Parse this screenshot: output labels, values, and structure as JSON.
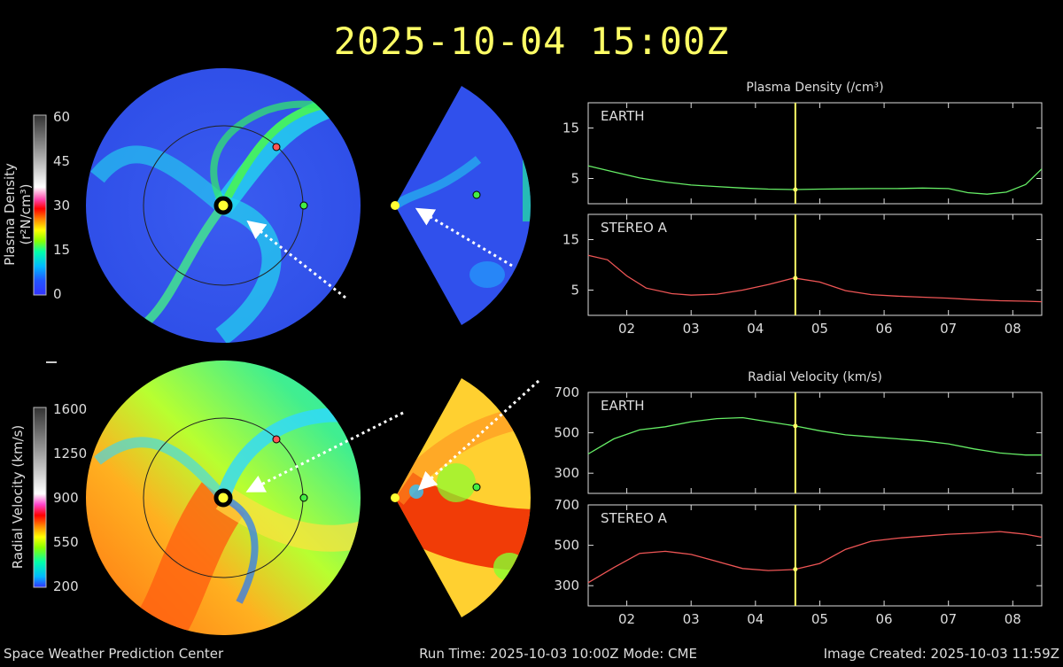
{
  "header": {
    "timestamp": "2025-10-04 15:00Z"
  },
  "footer": {
    "left": "Space Weather Prediction Center",
    "center": "Run Time: 2025-10-03 10:00Z  Mode: CME",
    "right": "Image Created: 2025-10-03 11:59Z"
  },
  "colorbars": {
    "density": {
      "label_html": "Plasma Density (r²N/cm³)",
      "ticks": [
        "60",
        "45",
        "30",
        "15",
        "0"
      ]
    },
    "velocity": {
      "label_html": "Radial Velocity (km/s)",
      "ticks": [
        "1600",
        "1250",
        "900",
        "550",
        "200"
      ]
    }
  },
  "colors": {
    "earth_line": "#66ee66",
    "stereo_line": "#ee5555",
    "time_marker": "#ffff66",
    "title": "#ffff66"
  },
  "chart_data": [
    {
      "type": "line",
      "panel": "Plasma Density - EARTH",
      "title": "Plasma Density (/cm³)",
      "label": "EARTH",
      "ylim": [
        0,
        20
      ],
      "yticks": [
        "15",
        "5"
      ],
      "x": [
        1.4,
        1.8,
        2.2,
        2.6,
        3.0,
        3.4,
        3.8,
        4.2,
        4.6,
        5.0,
        5.4,
        5.8,
        6.2,
        6.6,
        7.0,
        7.3,
        7.6,
        7.9,
        8.2,
        8.45
      ],
      "y": [
        7.5,
        6.3,
        5.1,
        4.3,
        3.7,
        3.4,
        3.1,
        2.9,
        2.8,
        2.9,
        2.95,
        3.0,
        3.0,
        3.1,
        3.0,
        2.2,
        1.9,
        2.3,
        3.8,
        6.9
      ],
      "marker_x": 4.62,
      "xticks": [
        "02",
        "03",
        "04",
        "05",
        "06",
        "07",
        "08"
      ]
    },
    {
      "type": "line",
      "panel": "Plasma Density - STEREO A",
      "label": "STEREO A",
      "ylim": [
        0,
        20
      ],
      "yticks": [
        "15",
        "5"
      ],
      "x": [
        1.4,
        1.7,
        2.0,
        2.3,
        2.7,
        3.0,
        3.4,
        3.8,
        4.2,
        4.6,
        5.0,
        5.4,
        5.8,
        6.2,
        6.6,
        7.0,
        7.4,
        7.8,
        8.2,
        8.45
      ],
      "y": [
        11.9,
        11.0,
        7.8,
        5.4,
        4.3,
        4.0,
        4.2,
        5.0,
        6.1,
        7.4,
        6.6,
        4.9,
        4.1,
        3.8,
        3.6,
        3.4,
        3.1,
        2.9,
        2.8,
        2.7
      ],
      "marker_x": 4.62,
      "xticks": [
        "02",
        "03",
        "04",
        "05",
        "06",
        "07",
        "08"
      ]
    },
    {
      "type": "line",
      "panel": "Radial Velocity - EARTH",
      "title": "Radial Velocity (km/s)",
      "label": "EARTH",
      "ylim": [
        200,
        700
      ],
      "yticks": [
        "700",
        "500",
        "300"
      ],
      "x": [
        1.4,
        1.8,
        2.2,
        2.6,
        3.0,
        3.4,
        3.8,
        4.2,
        4.6,
        5.0,
        5.4,
        5.8,
        6.2,
        6.6,
        7.0,
        7.4,
        7.8,
        8.2,
        8.45
      ],
      "y": [
        395,
        470,
        515,
        530,
        555,
        570,
        575,
        555,
        535,
        510,
        490,
        480,
        470,
        460,
        445,
        420,
        400,
        390,
        390
      ],
      "marker_x": 4.62,
      "xticks": [
        "02",
        "03",
        "04",
        "05",
        "06",
        "07",
        "08"
      ]
    },
    {
      "type": "line",
      "panel": "Radial Velocity - STEREO A",
      "label": "STEREO A",
      "ylim": [
        200,
        700
      ],
      "yticks": [
        "700",
        "500",
        "300"
      ],
      "x": [
        1.4,
        1.8,
        2.2,
        2.6,
        3.0,
        3.4,
        3.8,
        4.2,
        4.6,
        5.0,
        5.4,
        5.8,
        6.2,
        6.6,
        7.0,
        7.4,
        7.8,
        8.2,
        8.45
      ],
      "y": [
        315,
        390,
        460,
        470,
        455,
        420,
        385,
        375,
        380,
        410,
        480,
        520,
        535,
        545,
        555,
        560,
        568,
        555,
        540
      ],
      "marker_x": 4.62,
      "xticks": [
        "02",
        "03",
        "04",
        "05",
        "06",
        "07",
        "08"
      ]
    }
  ]
}
